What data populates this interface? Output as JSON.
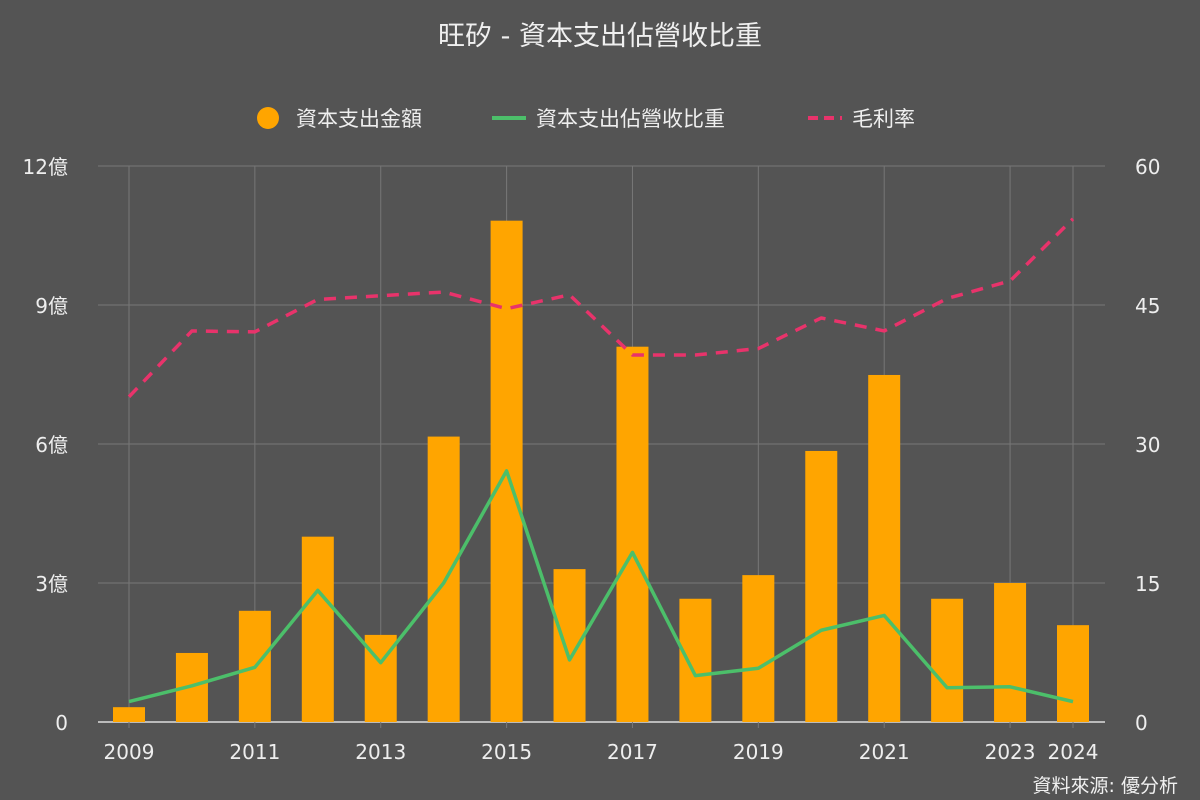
{
  "chart_data": {
    "type": "bar+line",
    "title": "旺矽 - 資本支出佔營收比重",
    "source": "資料來源: 優分析",
    "categories": [
      "2009",
      "2010",
      "2011",
      "2012",
      "2013",
      "2014",
      "2015",
      "2016",
      "2017",
      "2018",
      "2019",
      "2020",
      "2021",
      "2022",
      "2023",
      "2024"
    ],
    "x_tick_labels": [
      "2009",
      "2011",
      "2013",
      "2015",
      "2017",
      "2019",
      "2021",
      "2023",
      "2024"
    ],
    "left_axis": {
      "ylim": [
        0,
        12
      ],
      "ticks": [
        "0",
        "3億",
        "6億",
        "9億",
        "12億"
      ],
      "tick_values": [
        0,
        3,
        6,
        9,
        12
      ]
    },
    "right_axis": {
      "ylim": [
        0,
        60
      ],
      "ticks": [
        "0",
        "15",
        "30",
        "45",
        "60"
      ],
      "tick_values": [
        0,
        15,
        30,
        45,
        60
      ]
    },
    "grid": true,
    "legend_position": "top",
    "series": [
      {
        "name": "資本支出金額",
        "type": "bar",
        "axis": "left",
        "color": "#FFA500",
        "values": [
          0.32,
          1.49,
          2.4,
          4.0,
          1.88,
          6.16,
          10.82,
          3.3,
          8.1,
          2.66,
          3.17,
          5.85,
          7.49,
          2.66,
          3.0,
          2.09
        ]
      },
      {
        "name": "資本支出佔營收比重",
        "type": "line",
        "axis": "right",
        "color": "#4CBF6A",
        "values": [
          2.2,
          3.9,
          5.9,
          14.2,
          6.4,
          15.0,
          27.1,
          6.7,
          18.3,
          5.0,
          5.8,
          9.9,
          11.5,
          3.7,
          3.8,
          2.2
        ]
      },
      {
        "name": "毛利率",
        "type": "dashed-line",
        "axis": "right",
        "color": "#E8336B",
        "values": [
          35.1,
          42.2,
          42.1,
          45.6,
          46.0,
          46.4,
          44.6,
          46.1,
          39.6,
          39.6,
          40.3,
          43.6,
          42.2,
          45.7,
          47.6,
          54.3
        ]
      }
    ]
  }
}
